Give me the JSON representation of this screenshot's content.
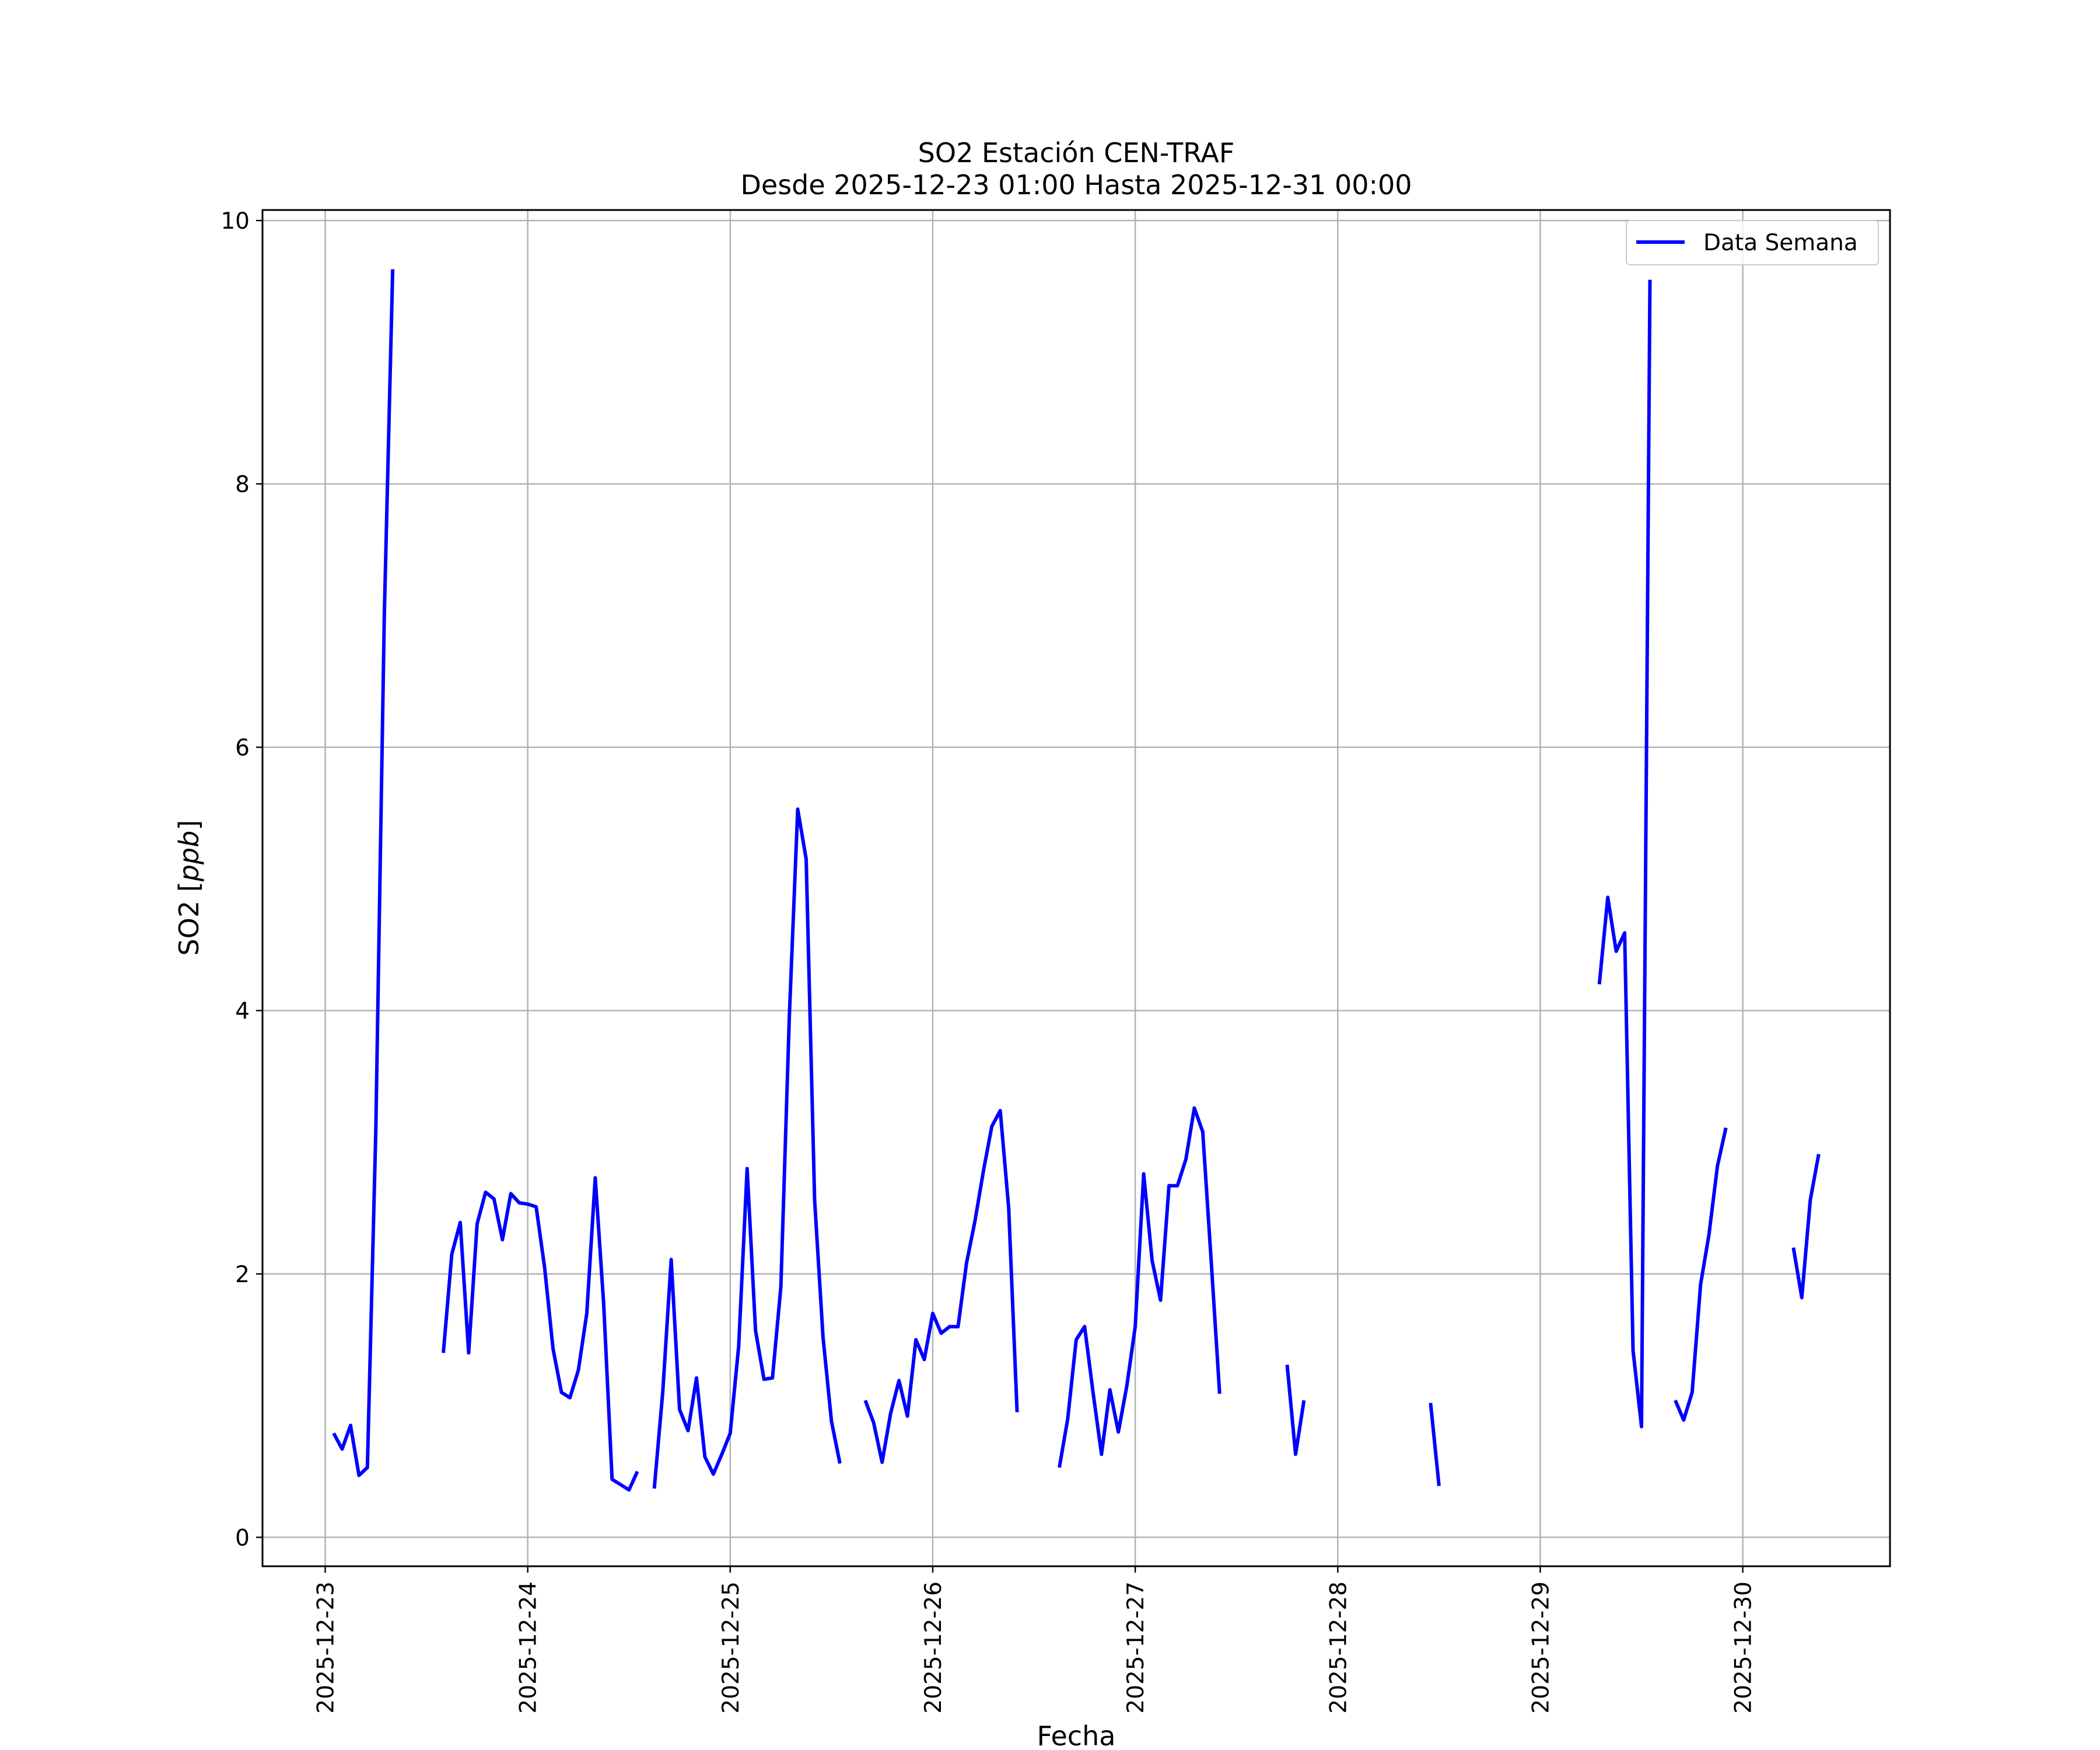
{
  "chart_data": {
    "type": "line",
    "title_line1": "SO2 Estación CEN-TRAF",
    "title_line2": "Desde 2025-12-23 01:00 Hasta 2025-12-31 00:00",
    "xlabel": "Fecha",
    "ylabel_prefix": "SO2 [",
    "ylabel_unit": "ppb",
    "ylabel_suffix": "]",
    "xlim": [
      "2025-12-22 16:34",
      "2025-12-30 17:27"
    ],
    "ylim": [
      -0.22,
      10.08
    ],
    "x_ticks": [
      "2025-12-23",
      "2025-12-24",
      "2025-12-25",
      "2025-12-26",
      "2025-12-27",
      "2025-12-28",
      "2025-12-29",
      "2025-12-30"
    ],
    "y_ticks": [
      0,
      2,
      4,
      6,
      8,
      10
    ],
    "y_tick_labels": [
      "0",
      "2",
      "4",
      "6",
      "8",
      "10"
    ],
    "grid": true,
    "legend_position": "top-right",
    "line_color": "#0000ff",
    "series": [
      {
        "name": "Data Semana",
        "segments": [
          [
            [
              "2025-12-23 01:00",
              0.79
            ],
            [
              "2025-12-23 02:00",
              0.67
            ],
            [
              "2025-12-23 03:00",
              0.85
            ],
            [
              "2025-12-23 04:00",
              0.47
            ],
            [
              "2025-12-23 05:00",
              0.53
            ],
            [
              "2025-12-23 06:00",
              3.1
            ],
            [
              "2025-12-23 07:00",
              7.0
            ],
            [
              "2025-12-23 08:00",
              9.63
            ]
          ],
          [
            [
              "2025-12-23 14:00",
              1.4
            ],
            [
              "2025-12-23 15:00",
              2.15
            ],
            [
              "2025-12-23 16:00",
              2.39
            ],
            [
              "2025-12-23 17:00",
              1.4
            ],
            [
              "2025-12-23 18:00",
              2.38
            ],
            [
              "2025-12-23 19:00",
              2.62
            ],
            [
              "2025-12-23 20:00",
              2.57
            ],
            [
              "2025-12-23 21:00",
              2.26
            ],
            [
              "2025-12-23 22:00",
              2.61
            ],
            [
              "2025-12-23 23:00",
              2.54
            ],
            [
              "2025-12-24 00:00",
              2.53
            ],
            [
              "2025-12-24 01:00",
              2.51
            ],
            [
              "2025-12-24 02:00",
              2.05
            ],
            [
              "2025-12-24 03:00",
              1.43
            ],
            [
              "2025-12-24 04:00",
              1.1
            ],
            [
              "2025-12-24 05:00",
              1.06
            ],
            [
              "2025-12-24 06:00",
              1.27
            ],
            [
              "2025-12-24 07:00",
              1.7
            ],
            [
              "2025-12-24 08:00",
              2.73
            ],
            [
              "2025-12-24 09:00",
              1.77
            ],
            [
              "2025-12-24 10:00",
              0.44
            ],
            [
              "2025-12-24 11:00",
              0.4
            ],
            [
              "2025-12-24 12:00",
              0.36
            ],
            [
              "2025-12-24 13:00",
              0.5
            ]
          ],
          [
            [
              "2025-12-24 15:00",
              0.37
            ],
            [
              "2025-12-24 16:00",
              1.1
            ],
            [
              "2025-12-24 17:00",
              2.11
            ],
            [
              "2025-12-24 18:00",
              0.97
            ],
            [
              "2025-12-24 19:00",
              0.81
            ],
            [
              "2025-12-24 20:00",
              1.21
            ],
            [
              "2025-12-24 21:00",
              0.61
            ],
            [
              "2025-12-24 22:00",
              0.48
            ],
            [
              "2025-12-24 23:00",
              0.63
            ],
            [
              "2025-12-25 00:00",
              0.79
            ],
            [
              "2025-12-25 01:00",
              1.45
            ],
            [
              "2025-12-25 02:00",
              2.8
            ],
            [
              "2025-12-25 03:00",
              1.57
            ],
            [
              "2025-12-25 04:00",
              1.2
            ],
            [
              "2025-12-25 05:00",
              1.21
            ],
            [
              "2025-12-25 06:00",
              1.9
            ],
            [
              "2025-12-25 07:00",
              3.95
            ],
            [
              "2025-12-25 08:00",
              5.53
            ],
            [
              "2025-12-25 09:00",
              5.15
            ],
            [
              "2025-12-25 10:00",
              2.56
            ],
            [
              "2025-12-25 11:00",
              1.52
            ],
            [
              "2025-12-25 12:00",
              0.88
            ],
            [
              "2025-12-25 13:00",
              0.56
            ]
          ],
          [
            [
              "2025-12-25 16:00",
              1.04
            ],
            [
              "2025-12-25 17:00",
              0.87
            ],
            [
              "2025-12-25 18:00",
              0.57
            ],
            [
              "2025-12-25 19:00",
              0.94
            ],
            [
              "2025-12-25 20:00",
              1.19
            ],
            [
              "2025-12-25 21:00",
              0.92
            ],
            [
              "2025-12-25 22:00",
              1.5
            ],
            [
              "2025-12-25 23:00",
              1.35
            ],
            [
              "2025-12-26 00:00",
              1.7
            ],
            [
              "2025-12-26 01:00",
              1.55
            ],
            [
              "2025-12-26 02:00",
              1.6
            ],
            [
              "2025-12-26 03:00",
              1.6
            ],
            [
              "2025-12-26 04:00",
              2.08
            ],
            [
              "2025-12-26 05:00",
              2.4
            ],
            [
              "2025-12-26 06:00",
              2.78
            ],
            [
              "2025-12-26 07:00",
              3.12
            ],
            [
              "2025-12-26 08:00",
              3.24
            ],
            [
              "2025-12-26 09:00",
              2.5
            ],
            [
              "2025-12-26 10:00",
              0.95
            ]
          ],
          [
            [
              "2025-12-26 15:00",
              0.53
            ],
            [
              "2025-12-26 16:00",
              0.9
            ],
            [
              "2025-12-26 17:00",
              1.5
            ],
            [
              "2025-12-26 18:00",
              1.6
            ],
            [
              "2025-12-26 19:00",
              1.1
            ],
            [
              "2025-12-26 20:00",
              0.63
            ],
            [
              "2025-12-26 21:00",
              1.12
            ],
            [
              "2025-12-26 22:00",
              0.8
            ],
            [
              "2025-12-26 23:00",
              1.15
            ],
            [
              "2025-12-27 00:00",
              1.6
            ],
            [
              "2025-12-27 01:00",
              2.76
            ],
            [
              "2025-12-27 02:00",
              2.1
            ],
            [
              "2025-12-27 03:00",
              1.8
            ],
            [
              "2025-12-27 04:00",
              2.67
            ],
            [
              "2025-12-27 05:00",
              2.67
            ],
            [
              "2025-12-27 06:00",
              2.87
            ],
            [
              "2025-12-27 07:00",
              3.26
            ],
            [
              "2025-12-27 08:00",
              3.08
            ],
            [
              "2025-12-27 09:00",
              2.1
            ],
            [
              "2025-12-27 10:00",
              1.09
            ]
          ],
          [
            [
              "2025-12-27 18:00",
              1.31
            ],
            [
              "2025-12-27 19:00",
              0.63
            ],
            [
              "2025-12-27 20:00",
              1.04
            ]
          ],
          [
            [
              "2025-12-28 11:00",
              1.02
            ],
            [
              "2025-12-28 12:00",
              0.39
            ]
          ],
          [
            [
              "2025-12-29 07:00",
              4.2
            ],
            [
              "2025-12-29 08:00",
              4.86
            ],
            [
              "2025-12-29 09:00",
              4.45
            ],
            [
              "2025-12-29 10:00",
              4.59
            ],
            [
              "2025-12-29 11:00",
              1.42
            ],
            [
              "2025-12-29 12:00",
              0.84
            ],
            [
              "2025-12-29 13:00",
              9.55
            ]
          ],
          [
            [
              "2025-12-29 16:00",
              1.04
            ],
            [
              "2025-12-29 17:00",
              0.89
            ],
            [
              "2025-12-29 18:00",
              1.1
            ],
            [
              "2025-12-29 19:00",
              1.92
            ],
            [
              "2025-12-29 20:00",
              2.3
            ],
            [
              "2025-12-29 21:00",
              2.82
            ],
            [
              "2025-12-29 22:00",
              3.11
            ]
          ],
          [
            [
              "2025-12-30 06:00",
              2.2
            ],
            [
              "2025-12-30 07:00",
              1.82
            ],
            [
              "2025-12-30 08:00",
              2.56
            ],
            [
              "2025-12-30 09:00",
              2.91
            ]
          ]
        ]
      }
    ]
  }
}
